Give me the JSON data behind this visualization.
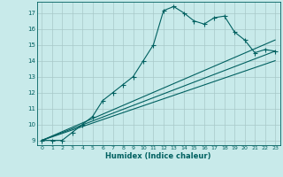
{
  "xlabel": "Humidex (Indice chaleur)",
  "background_color": "#c8eaea",
  "grid_color": "#a8c8c8",
  "line_color": "#006060",
  "xlim": [
    -0.5,
    23.5
  ],
  "ylim": [
    8.7,
    17.7
  ],
  "yticks": [
    9,
    10,
    11,
    12,
    13,
    14,
    15,
    16,
    17
  ],
  "xticks": [
    0,
    1,
    2,
    3,
    4,
    5,
    6,
    7,
    8,
    9,
    10,
    11,
    12,
    13,
    14,
    15,
    16,
    17,
    18,
    19,
    20,
    21,
    22,
    23
  ],
  "main_x": [
    0,
    1,
    2,
    3,
    4,
    5,
    6,
    7,
    8,
    9,
    10,
    11,
    12,
    13,
    14,
    15,
    16,
    17,
    18,
    19,
    20,
    21,
    22,
    23
  ],
  "main_y": [
    9,
    9,
    9,
    9.5,
    10.0,
    10.5,
    11.5,
    12.0,
    12.5,
    13.0,
    14.0,
    15.0,
    17.15,
    17.4,
    17.0,
    16.5,
    16.3,
    16.7,
    16.8,
    15.8,
    15.3,
    14.5,
    14.7,
    14.6
  ],
  "line1_x": [
    0,
    23
  ],
  "line1_y": [
    9,
    15.3
  ],
  "line2_x": [
    0,
    23
  ],
  "line2_y": [
    9,
    14.6
  ],
  "line3_x": [
    0,
    23
  ],
  "line3_y": [
    9,
    14.0
  ]
}
